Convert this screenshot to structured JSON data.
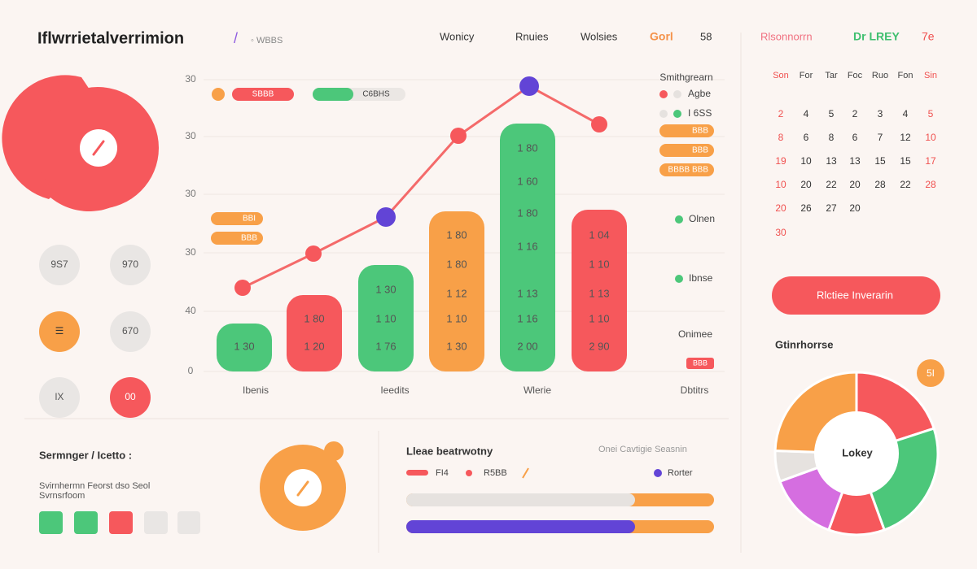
{
  "header": {
    "title": "Iflwrrietalverrimion",
    "title_mark": "/",
    "subtitle": "◦ WBBS",
    "nav": [
      "Wonicy",
      "Rnuies",
      "Wolsies",
      "Gorl",
      "58"
    ],
    "right": [
      "Rlsonnorrn",
      "Dr LREY",
      "7e"
    ]
  },
  "side_circles": [
    "9S7",
    "970",
    "☰",
    "670",
    "lX",
    "00"
  ],
  "chart": {
    "yaxis": [
      "30",
      "30",
      "30",
      "30",
      "40",
      "0"
    ],
    "legend_pills": [
      "SBBB",
      "C6BHS"
    ],
    "left_pills": [
      "BBI",
      "BBB"
    ],
    "bars": [
      [
        "1 30"
      ],
      [
        "1 80",
        "1 20"
      ],
      [
        "1 30",
        "1 10",
        "1 76"
      ],
      [
        "1 80",
        "1 80",
        "1 12",
        "1 10",
        "1 30"
      ],
      [
        "1 80",
        "1 60",
        "1 80",
        "1 16",
        "1 13",
        "1 16",
        "2 00"
      ],
      [
        "1 04",
        "1 10",
        "1 13",
        "1 10",
        "2 90"
      ]
    ],
    "xlabels": [
      "Ibenis",
      "Ieedits",
      "Wlerie",
      "Dbtitrs"
    ]
  },
  "chart_legend": {
    "title": "Smithgrearn",
    "items": [
      "Agbe",
      "I 6SS"
    ],
    "pills": [
      "BBB",
      "BBB",
      "BBBB BBB"
    ],
    "labels": [
      "Olnen",
      "Ibnse",
      "Onimee"
    ],
    "tag": "BBB"
  },
  "calendar": {
    "days": [
      "Son",
      "For",
      "Tar",
      "Foc",
      "Ruo",
      "Fon",
      "Sin"
    ],
    "rows": [
      [
        "2",
        "4",
        "5",
        "2",
        "3",
        "4",
        "5"
      ],
      [
        "8",
        "6",
        "8",
        "6",
        "7",
        "12",
        "10"
      ],
      [
        "19",
        "10",
        "13",
        "13",
        "15",
        "15",
        "17"
      ],
      [
        "10",
        "20",
        "22",
        "20",
        "28",
        "22",
        "28"
      ],
      [
        "20",
        "26",
        "27",
        "20"
      ],
      [
        "30"
      ]
    ]
  },
  "button": "Rlctiee Inverarin",
  "donut": {
    "title": "Gtinrhorrse",
    "badge": "5I",
    "center": "Lokey"
  },
  "bottom_left": {
    "title": "Sermnger / Icetto :",
    "line1": "Svirnhermn Feorst dso Seol",
    "line2": "Svrnsrfoom"
  },
  "bottom_mid": {
    "title": "Lleae beatrwotny",
    "note": "Onei Cavtigie Seasnin",
    "items": [
      "FI4",
      "R5BB",
      "Rorter"
    ]
  }
}
